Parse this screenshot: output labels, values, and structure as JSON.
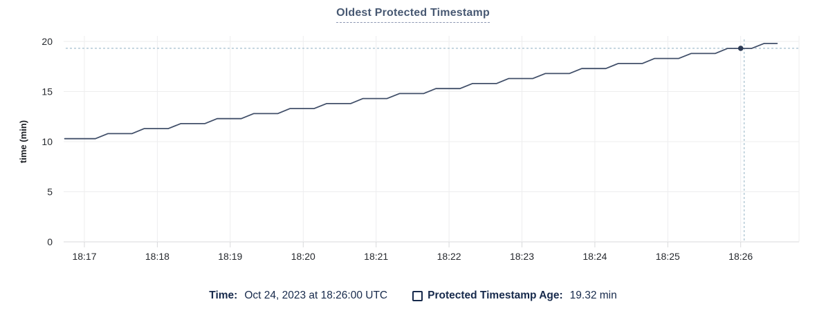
{
  "title": "Oldest Protected Timestamp",
  "colors": {
    "title": "#475872",
    "title_underline": "#8b96b1",
    "line": "#414f69",
    "dot": "#2c3a54",
    "crosshair": "#a3becd",
    "grid": "#ededee",
    "grid_zero": "#d8d9db",
    "axis_text": "#26292e",
    "axis_title_text": "#1b1e23",
    "legend_text": "#16294b"
  },
  "legend": {
    "time_label": "Time:",
    "time_value": "Oct 24, 2023 at 18:26:00 UTC",
    "series_label": "Protected Timestamp Age:",
    "series_value": "19.32 min"
  },
  "chart_data": {
    "type": "line",
    "title": "Oldest Protected Timestamp",
    "xlabel": "",
    "ylabel": "time (min)",
    "ylim": [
      0,
      20
    ],
    "yticks": [
      0,
      5,
      10,
      15,
      20
    ],
    "xticks": [
      "18:17",
      "18:18",
      "18:19",
      "18:20",
      "18:21",
      "18:22",
      "18:23",
      "18:24",
      "18:25",
      "18:26"
    ],
    "xtick_minutes": [
      17,
      18,
      19,
      20,
      21,
      22,
      23,
      24,
      25,
      26
    ],
    "x_domain_minutes": [
      16.715,
      26.8
    ],
    "grid": "on",
    "legend_position": "bottom",
    "series": [
      {
        "name": "Protected Timestamp Age",
        "points": [
          [
            16.73,
            10.3
          ],
          [
            17.15,
            10.3
          ],
          [
            17.32,
            10.8
          ],
          [
            17.65,
            10.8
          ],
          [
            17.82,
            11.3
          ],
          [
            18.15,
            11.3
          ],
          [
            18.32,
            11.8
          ],
          [
            18.65,
            11.8
          ],
          [
            18.82,
            12.3
          ],
          [
            19.15,
            12.3
          ],
          [
            19.32,
            12.8
          ],
          [
            19.65,
            12.8
          ],
          [
            19.82,
            13.3
          ],
          [
            20.15,
            13.3
          ],
          [
            20.32,
            13.8
          ],
          [
            20.65,
            13.8
          ],
          [
            20.82,
            14.3
          ],
          [
            21.15,
            14.3
          ],
          [
            21.32,
            14.8
          ],
          [
            21.65,
            14.8
          ],
          [
            21.82,
            15.3
          ],
          [
            22.15,
            15.3
          ],
          [
            22.32,
            15.8
          ],
          [
            22.65,
            15.8
          ],
          [
            22.82,
            16.3
          ],
          [
            23.15,
            16.3
          ],
          [
            23.32,
            16.8
          ],
          [
            23.65,
            16.8
          ],
          [
            23.82,
            17.3
          ],
          [
            24.15,
            17.3
          ],
          [
            24.32,
            17.8
          ],
          [
            24.65,
            17.8
          ],
          [
            24.82,
            18.3
          ],
          [
            25.15,
            18.3
          ],
          [
            25.32,
            18.8
          ],
          [
            25.65,
            18.8
          ],
          [
            25.82,
            19.3
          ],
          [
            26.15,
            19.3
          ],
          [
            26.32,
            19.8
          ],
          [
            26.5,
            19.8
          ]
        ]
      }
    ],
    "hover": {
      "x_minutes": 26.0,
      "x_label": "18:26",
      "value": 19.32,
      "time_text": "Oct 24, 2023 at 18:26:00 UTC",
      "value_text": "19.32 min"
    }
  }
}
